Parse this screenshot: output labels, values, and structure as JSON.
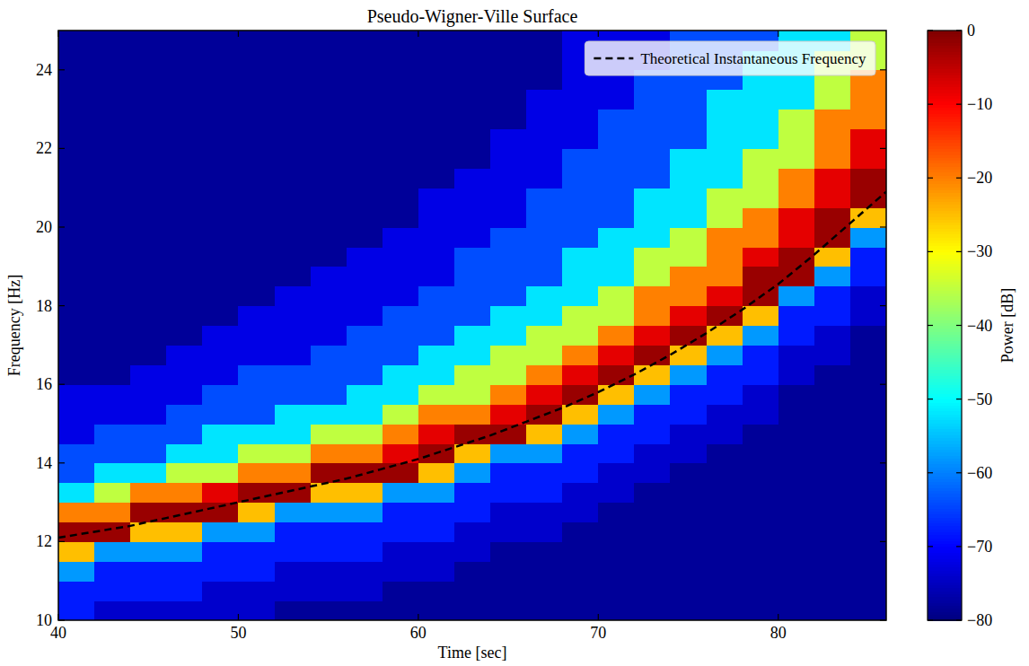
{
  "chart_data": {
    "type": "heatmap",
    "title": "Pseudo-Wigner-Ville Surface",
    "x_label": "Time [sec]",
    "y_label": "Frequency [Hz]",
    "xlim": [
      40,
      86
    ],
    "ylim": [
      10,
      25
    ],
    "xticks": [
      40,
      50,
      60,
      70,
      80
    ],
    "yticks": [
      10,
      12,
      14,
      16,
      18,
      20,
      22,
      24
    ],
    "x_edges": [
      40,
      42,
      44,
      46,
      48,
      50,
      52,
      54,
      56,
      58,
      60,
      62,
      64,
      66,
      68,
      70,
      72,
      74,
      76,
      78,
      80,
      82,
      84,
      86
    ],
    "y_edges": [
      10,
      10.5,
      11,
      11.5,
      12,
      12.5,
      13,
      13.5,
      14,
      14.5,
      15,
      15.5,
      16,
      16.5,
      17,
      17.5,
      18,
      18.5,
      19,
      19.5,
      20,
      20.5,
      21,
      21.5,
      22,
      22.5,
      23,
      23.5,
      24,
      24.5,
      25
    ],
    "cells": [
      [
        -68,
        -68,
        -58,
        -25,
        -2,
        -20,
        -52,
        -64,
        -64,
        -72,
        -72,
        -72,
        -78,
        -78,
        -78,
        -78,
        -78,
        -78,
        -78,
        -78,
        -78,
        -78,
        -78,
        -78,
        -78,
        -78,
        -78,
        -78,
        -78,
        -78
      ],
      [
        -74,
        -68,
        -68,
        -58,
        -2,
        -20,
        -35,
        -52,
        -64,
        -64,
        -72,
        -72,
        -78,
        -78,
        -78,
        -78,
        -78,
        -78,
        -78,
        -78,
        -78,
        -78,
        -78,
        -78,
        -78,
        -78,
        -78,
        -78,
        -78,
        -78
      ],
      [
        -74,
        -68,
        -68,
        -58,
        -25,
        -2,
        -20,
        -52,
        -64,
        -64,
        -72,
        -72,
        -72,
        -78,
        -78,
        -78,
        -78,
        -78,
        -78,
        -78,
        -78,
        -78,
        -78,
        -78,
        -78,
        -78,
        -78,
        -78,
        -78,
        -78
      ],
      [
        -74,
        -68,
        -68,
        -58,
        -25,
        -2,
        -20,
        -35,
        -52,
        -64,
        -64,
        -72,
        -72,
        -72,
        -78,
        -78,
        -78,
        -78,
        -78,
        -78,
        -78,
        -78,
        -78,
        -78,
        -78,
        -78,
        -78,
        -78,
        -78,
        -78
      ],
      [
        -74,
        -74,
        -68,
        -68,
        -58,
        -2,
        -8,
        -35,
        -52,
        -52,
        -64,
        -64,
        -72,
        -72,
        -72,
        -78,
        -78,
        -78,
        -78,
        -78,
        -78,
        -78,
        -78,
        -78,
        -78,
        -78,
        -78,
        -78,
        -78,
        -78
      ],
      [
        -74,
        -74,
        -68,
        -68,
        -58,
        -25,
        -2,
        -20,
        -35,
        -52,
        -64,
        -64,
        -64,
        -72,
        -72,
        -72,
        -78,
        -78,
        -78,
        -78,
        -78,
        -78,
        -78,
        -78,
        -78,
        -78,
        -78,
        -78,
        -78,
        -78
      ],
      [
        -78,
        -74,
        -74,
        -68,
        -68,
        -58,
        -2,
        -20,
        -35,
        -52,
        -52,
        -64,
        -64,
        -72,
        -72,
        -72,
        -72,
        -78,
        -78,
        -78,
        -78,
        -78,
        -78,
        -78,
        -78,
        -78,
        -78,
        -78,
        -78,
        -78
      ],
      [
        -78,
        -74,
        -74,
        -68,
        -68,
        -58,
        -25,
        -2,
        -20,
        -35,
        -52,
        -64,
        -64,
        -64,
        -72,
        -72,
        -72,
        -72,
        -78,
        -78,
        -78,
        -78,
        -78,
        -78,
        -78,
        -78,
        -78,
        -78,
        -78,
        -78
      ],
      [
        -78,
        -74,
        -74,
        -68,
        -68,
        -58,
        -25,
        -2,
        -20,
        -35,
        -52,
        -52,
        -64,
        -64,
        -64,
        -72,
        -72,
        -72,
        -72,
        -78,
        -78,
        -78,
        -78,
        -78,
        -78,
        -78,
        -78,
        -78,
        -78,
        -78
      ],
      [
        -78,
        -78,
        -74,
        -74,
        -68,
        -68,
        -58,
        -2,
        -8,
        -20,
        -35,
        -52,
        -52,
        -64,
        -64,
        -64,
        -72,
        -72,
        -72,
        -72,
        -78,
        -78,
        -78,
        -78,
        -78,
        -78,
        -78,
        -78,
        -78,
        -78
      ],
      [
        -78,
        -78,
        -74,
        -74,
        -68,
        -68,
        -58,
        -25,
        -2,
        -8,
        -20,
        -35,
        -52,
        -52,
        -64,
        -64,
        -64,
        -72,
        -72,
        -72,
        -72,
        -72,
        -78,
        -78,
        -78,
        -78,
        -78,
        -78,
        -78,
        -78
      ],
      [
        -78,
        -78,
        -78,
        -74,
        -74,
        -68,
        -68,
        -58,
        -25,
        -2,
        -20,
        -35,
        -35,
        -52,
        -52,
        -64,
        -64,
        -64,
        -64,
        -72,
        -72,
        -72,
        -72,
        -78,
        -78,
        -78,
        -78,
        -78,
        -78,
        -78
      ],
      [
        -78,
        -78,
        -78,
        -78,
        -74,
        -74,
        -68,
        -68,
        -58,
        -2,
        -8,
        -20,
        -35,
        -35,
        -52,
        -52,
        -64,
        -64,
        -64,
        -64,
        -72,
        -72,
        -72,
        -72,
        -72,
        -78,
        -78,
        -78,
        -78,
        -78
      ],
      [
        -78,
        -78,
        -78,
        -78,
        -74,
        -74,
        -68,
        -68,
        -58,
        -25,
        -2,
        -8,
        -20,
        -35,
        -35,
        -52,
        -52,
        -64,
        -64,
        -64,
        -64,
        -64,
        -72,
        -72,
        -72,
        -72,
        -72,
        -78,
        -78,
        -78
      ],
      [
        -78,
        -78,
        -78,
        -78,
        -78,
        -74,
        -74,
        -68,
        -68,
        -58,
        -25,
        -2,
        -8,
        -20,
        -35,
        -35,
        -52,
        -52,
        -52,
        -64,
        -64,
        -64,
        -64,
        -64,
        -72,
        -72,
        -72,
        -72,
        -72,
        -72
      ],
      [
        -78,
        -78,
        -78,
        -78,
        -78,
        -78,
        -74,
        -74,
        -68,
        -68,
        -58,
        -25,
        -2,
        -8,
        -20,
        -35,
        -35,
        -52,
        -52,
        -52,
        -64,
        -64,
        -64,
        -64,
        -64,
        -64,
        -72,
        -72,
        -72,
        -72
      ],
      [
        -78,
        -78,
        -78,
        -78,
        -78,
        -78,
        -78,
        -74,
        -74,
        -68,
        -68,
        -58,
        -25,
        -2,
        -8,
        -20,
        -20,
        -35,
        -35,
        -52,
        -52,
        -52,
        -64,
        -64,
        -64,
        -64,
        -64,
        -64,
        -72,
        -72
      ],
      [
        -78,
        -78,
        -78,
        -78,
        -78,
        -78,
        -78,
        -78,
        -74,
        -74,
        -68,
        -68,
        -58,
        -25,
        -2,
        -8,
        -20,
        -20,
        -35,
        -35,
        -52,
        -52,
        -52,
        -52,
        -64,
        -64,
        -64,
        -64,
        -64,
        -64
      ],
      [
        -78,
        -78,
        -78,
        -78,
        -78,
        -78,
        -78,
        -78,
        -78,
        -74,
        -74,
        -68,
        -68,
        -58,
        -25,
        -2,
        -8,
        -20,
        -20,
        -20,
        -35,
        -35,
        -52,
        -52,
        -52,
        -52,
        -52,
        -64,
        -64,
        -64
      ],
      [
        -78,
        -78,
        -78,
        -78,
        -78,
        -78,
        -78,
        -78,
        -78,
        -78,
        -74,
        -74,
        -68,
        -68,
        -58,
        -25,
        -2,
        -2,
        -8,
        -20,
        -20,
        -35,
        -35,
        -35,
        -52,
        -52,
        -52,
        -52,
        -52,
        -64
      ],
      [
        -78,
        -78,
        -78,
        -78,
        -78,
        -78,
        -78,
        -78,
        -78,
        -78,
        -78,
        -78,
        -74,
        -74,
        -68,
        -68,
        -58,
        -2,
        -2,
        -8,
        -8,
        -20,
        -20,
        -35,
        -35,
        -35,
        -52,
        -52,
        -52,
        -52
      ],
      [
        -78,
        -78,
        -78,
        -78,
        -78,
        -78,
        -78,
        -78,
        -78,
        -78,
        -78,
        -78,
        -78,
        -74,
        -74,
        -68,
        -68,
        -58,
        -25,
        -2,
        -2,
        -8,
        -8,
        -20,
        -20,
        -20,
        -35,
        -35,
        -35,
        -52
      ],
      [
        -78,
        -78,
        -78,
        -78,
        -78,
        -78,
        -78,
        -78,
        -78,
        -78,
        -78,
        -78,
        -78,
        -78,
        -78,
        -74,
        -74,
        -68,
        -68,
        -58,
        -25,
        -2,
        -2,
        -8,
        -8,
        -20,
        -20,
        -20,
        -35,
        -35
      ]
    ],
    "colorbar": {
      "label": "Power [dB]",
      "lim": [
        -80,
        0
      ],
      "ticks": [
        {
          "value": -80,
          "label": "−80"
        },
        {
          "value": -70,
          "label": "−70"
        },
        {
          "value": -60,
          "label": "−60"
        },
        {
          "value": -50,
          "label": "−50"
        },
        {
          "value": -40,
          "label": "−40"
        },
        {
          "value": -30,
          "label": "−30"
        },
        {
          "value": -20,
          "label": "−20"
        },
        {
          "value": -10,
          "label": "−10"
        },
        0
      ]
    },
    "series": [
      {
        "name": "Theoretical Instantaneous Frequency",
        "type": "line",
        "color": "#000000",
        "line_style": "dashed",
        "x": [
          40,
          42,
          44,
          46,
          48,
          50,
          52,
          54,
          56,
          58,
          60,
          62,
          64,
          66,
          68,
          70,
          72,
          74,
          76,
          78,
          80,
          82,
          84,
          86
        ],
        "values": [
          12.1,
          12.25,
          12.4,
          12.6,
          12.8,
          13.0,
          13.2,
          13.4,
          13.6,
          13.85,
          14.1,
          14.4,
          14.7,
          15.05,
          15.4,
          15.8,
          16.25,
          16.75,
          17.3,
          17.9,
          18.55,
          19.3,
          20.1,
          20.9
        ]
      }
    ],
    "legend": "upper right"
  }
}
